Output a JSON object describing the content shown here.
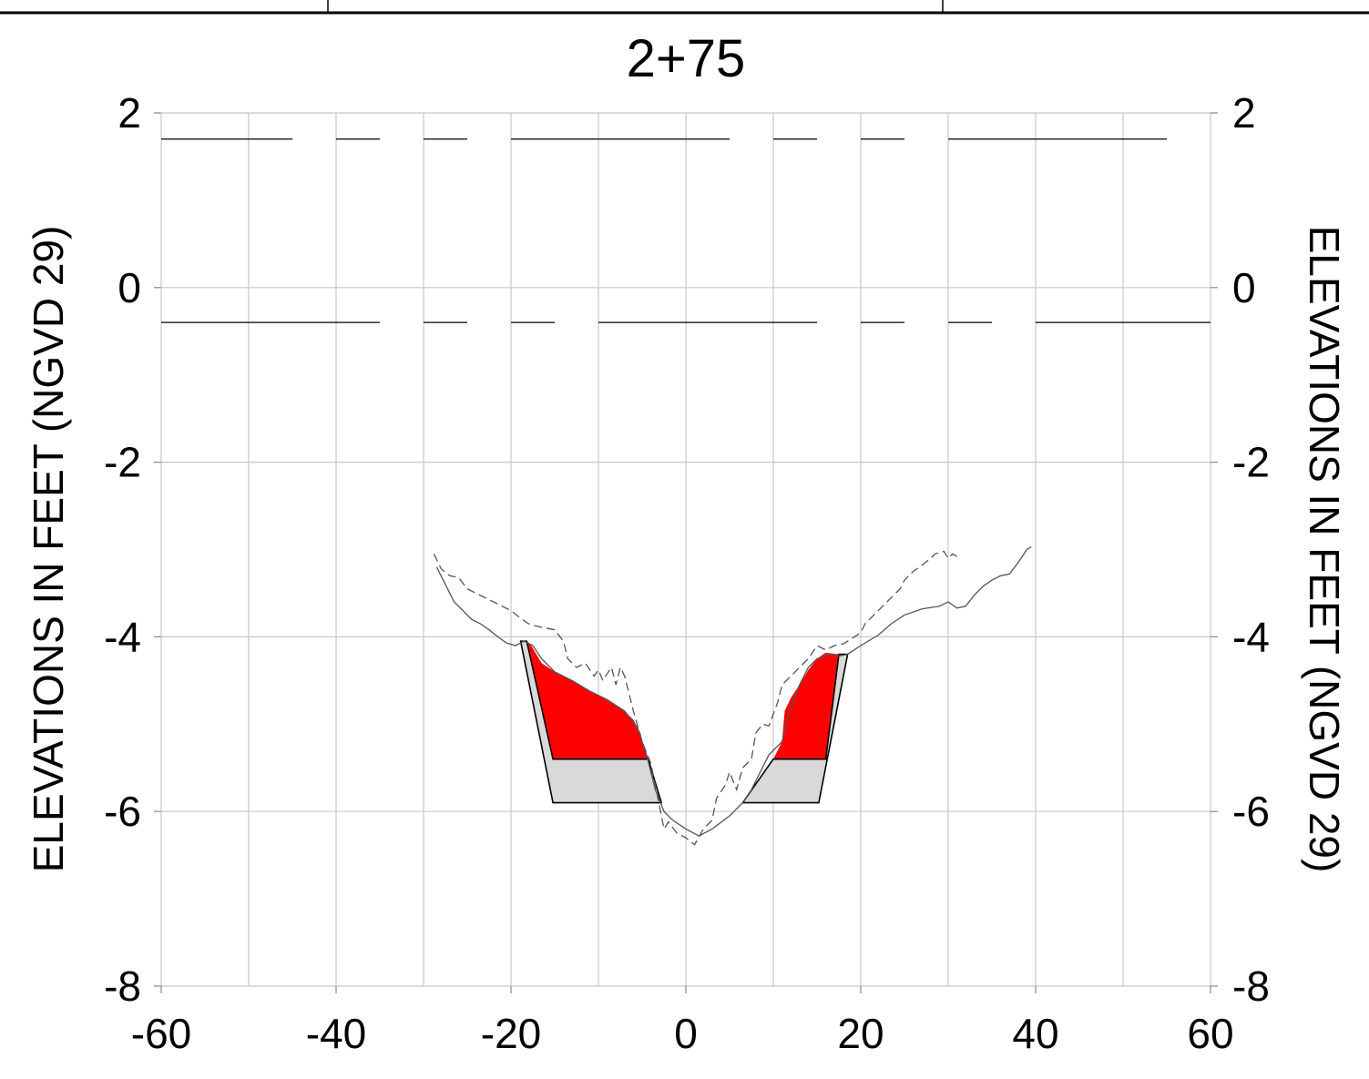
{
  "chart_data": {
    "type": "line",
    "title": "2+75",
    "xlabel": "",
    "ylabel": "ELEVATIONS IN FEET (NGVD 29)",
    "ylabel_right": "ELEVATIONS IN FEET (NGVD 29)",
    "xlim": [
      -60,
      60
    ],
    "ylim": [
      -8,
      2
    ],
    "grid": true,
    "x_ticks": [
      -60,
      -40,
      -20,
      0,
      20,
      40,
      60
    ],
    "x_tick_labels": [
      "-60",
      "-40",
      "-20",
      "0",
      "20",
      "40",
      "60"
    ],
    "y_ticks": [
      2,
      0,
      -2,
      -4,
      -6,
      -8
    ],
    "y_tick_labels": [
      "2",
      "0",
      "-2",
      "-4",
      "-6",
      "-8"
    ],
    "reference_lines": [
      {
        "y": 1.7,
        "style": "dash-long-short-short"
      },
      {
        "y": -0.4,
        "style": "dash-long-short-short"
      }
    ],
    "series": [
      {
        "style": "solid",
        "points": [
          [
            -28.5,
            -3.2
          ],
          [
            -27.5,
            -3.4
          ],
          [
            -26.5,
            -3.6
          ],
          [
            -25.5,
            -3.7
          ],
          [
            -24.5,
            -3.8
          ],
          [
            -23.5,
            -3.85
          ],
          [
            -22.5,
            -3.92
          ],
          [
            -21.5,
            -4.0
          ],
          [
            -20.5,
            -4.07
          ],
          [
            -19.5,
            -4.1
          ],
          [
            -18.5,
            -4.05
          ],
          [
            -17.5,
            -4.1
          ],
          [
            -16.5,
            -4.25
          ],
          [
            -15,
            -4.4
          ],
          [
            -13,
            -4.5
          ],
          [
            -11,
            -4.62
          ],
          [
            -9,
            -4.72
          ],
          [
            -7,
            -4.85
          ],
          [
            -5.5,
            -5.05
          ],
          [
            -4.5,
            -5.35
          ],
          [
            -3.5,
            -5.75
          ],
          [
            -2.5,
            -6.0
          ],
          [
            -1.5,
            -6.1
          ],
          [
            0,
            -6.2
          ],
          [
            1.5,
            -6.28
          ],
          [
            3,
            -6.2
          ],
          [
            5,
            -6.05
          ],
          [
            6.5,
            -5.9
          ],
          [
            7.5,
            -5.75
          ],
          [
            8.5,
            -5.55
          ],
          [
            9.5,
            -5.35
          ],
          [
            11,
            -5.2
          ],
          [
            12,
            -4.8
          ],
          [
            13,
            -4.55
          ],
          [
            14,
            -4.35
          ],
          [
            15,
            -4.25
          ],
          [
            16.5,
            -4.2
          ],
          [
            17.5,
            -4.22
          ],
          [
            18.5,
            -4.2
          ],
          [
            20,
            -4.1
          ],
          [
            22,
            -3.98
          ],
          [
            23.5,
            -3.85
          ],
          [
            25,
            -3.75
          ],
          [
            27,
            -3.68
          ],
          [
            29,
            -3.65
          ],
          [
            30,
            -3.6
          ],
          [
            31,
            -3.67
          ],
          [
            32,
            -3.65
          ],
          [
            33,
            -3.52
          ],
          [
            34,
            -3.42
          ],
          [
            35,
            -3.35
          ],
          [
            36,
            -3.3
          ],
          [
            37,
            -3.28
          ],
          [
            38,
            -3.15
          ],
          [
            39,
            -3.0
          ],
          [
            39.5,
            -2.97
          ]
        ]
      },
      {
        "style": "dashed",
        "points": [
          [
            -28.8,
            -3.05
          ],
          [
            -28,
            -3.22
          ],
          [
            -27,
            -3.3
          ],
          [
            -26,
            -3.32
          ],
          [
            -25,
            -3.45
          ],
          [
            -24,
            -3.5
          ],
          [
            -23,
            -3.55
          ],
          [
            -22,
            -3.6
          ],
          [
            -21,
            -3.65
          ],
          [
            -20,
            -3.7
          ],
          [
            -19,
            -3.78
          ],
          [
            -18,
            -3.85
          ],
          [
            -17,
            -3.88
          ],
          [
            -15,
            -3.92
          ],
          [
            -14,
            -4.05
          ],
          [
            -13.5,
            -4.25
          ],
          [
            -12.5,
            -4.35
          ],
          [
            -11.5,
            -4.3
          ],
          [
            -10.5,
            -4.45
          ],
          [
            -10,
            -4.38
          ],
          [
            -9.5,
            -4.5
          ],
          [
            -9,
            -4.42
          ],
          [
            -8.5,
            -4.35
          ],
          [
            -8,
            -4.55
          ],
          [
            -7.5,
            -4.35
          ],
          [
            -7,
            -4.45
          ],
          [
            -6.5,
            -4.65
          ],
          [
            -6,
            -4.85
          ],
          [
            -5,
            -5.2
          ],
          [
            -4,
            -5.45
          ],
          [
            -3,
            -5.95
          ],
          [
            -2.5,
            -6.2
          ],
          [
            -2,
            -6.12
          ],
          [
            -1,
            -6.25
          ],
          [
            0,
            -6.3
          ],
          [
            1,
            -6.38
          ],
          [
            2,
            -6.2
          ],
          [
            3,
            -6.1
          ],
          [
            3.5,
            -5.85
          ],
          [
            4.5,
            -5.7
          ],
          [
            5,
            -5.55
          ],
          [
            5.8,
            -5.75
          ],
          [
            6.5,
            -5.5
          ],
          [
            7.5,
            -5.4
          ],
          [
            8,
            -5.1
          ],
          [
            8.8,
            -5.0
          ],
          [
            9.5,
            -5.02
          ],
          [
            10.5,
            -4.75
          ],
          [
            11,
            -4.55
          ],
          [
            12,
            -4.45
          ],
          [
            13,
            -4.35
          ],
          [
            14,
            -4.25
          ],
          [
            15,
            -4.1
          ],
          [
            16,
            -4.15
          ],
          [
            17,
            -4.1
          ],
          [
            18,
            -4.08
          ],
          [
            19,
            -4.02
          ],
          [
            20,
            -3.95
          ],
          [
            20.5,
            -3.85
          ],
          [
            21.5,
            -3.75
          ],
          [
            22.5,
            -3.65
          ],
          [
            23.5,
            -3.55
          ],
          [
            24.5,
            -3.45
          ],
          [
            25,
            -3.35
          ],
          [
            26,
            -3.25
          ],
          [
            27,
            -3.18
          ],
          [
            28,
            -3.1
          ],
          [
            28.5,
            -3.05
          ],
          [
            29.5,
            -3.02
          ],
          [
            30,
            -3.1
          ],
          [
            30.5,
            -3.05
          ],
          [
            31,
            -3.08
          ]
        ]
      }
    ],
    "regions": [
      {
        "fill": "#FF0000",
        "points": [
          [
            -18.2,
            -4.05
          ],
          [
            -17.8,
            -4.08
          ],
          [
            -16.5,
            -4.3
          ],
          [
            -15,
            -4.4
          ],
          [
            -13,
            -4.5
          ],
          [
            -11,
            -4.62
          ],
          [
            -9,
            -4.72
          ],
          [
            -7,
            -4.85
          ],
          [
            -6,
            -4.95
          ],
          [
            -5.2,
            -5.1
          ],
          [
            -4.7,
            -5.3
          ],
          [
            -4.3,
            -5.4
          ],
          [
            -15.2,
            -5.4
          ]
        ]
      },
      {
        "fill": "#FF0000",
        "points": [
          [
            10,
            -5.4
          ],
          [
            11,
            -5.2
          ],
          [
            11.3,
            -4.85
          ],
          [
            12,
            -4.7
          ],
          [
            13,
            -4.55
          ],
          [
            14,
            -4.38
          ],
          [
            15,
            -4.25
          ],
          [
            16,
            -4.18
          ],
          [
            17.5,
            -4.2
          ],
          [
            16,
            -5.4
          ]
        ]
      },
      {
        "fill": "#D9D9D9",
        "outline": "#000000",
        "points": [
          [
            -18.9,
            -4.05
          ],
          [
            -18.2,
            -4.05
          ],
          [
            -15.2,
            -5.4
          ],
          [
            -4.3,
            -5.4
          ],
          [
            -2.8,
            -5.9
          ],
          [
            -15.2,
            -5.9
          ]
        ]
      },
      {
        "fill": "#D9D9D9",
        "outline": "#000000",
        "points": [
          [
            6.5,
            -5.9
          ],
          [
            10,
            -5.4
          ],
          [
            16,
            -5.4
          ],
          [
            17.5,
            -4.2
          ],
          [
            18.5,
            -4.2
          ],
          [
            15.2,
            -5.9
          ]
        ]
      }
    ]
  }
}
